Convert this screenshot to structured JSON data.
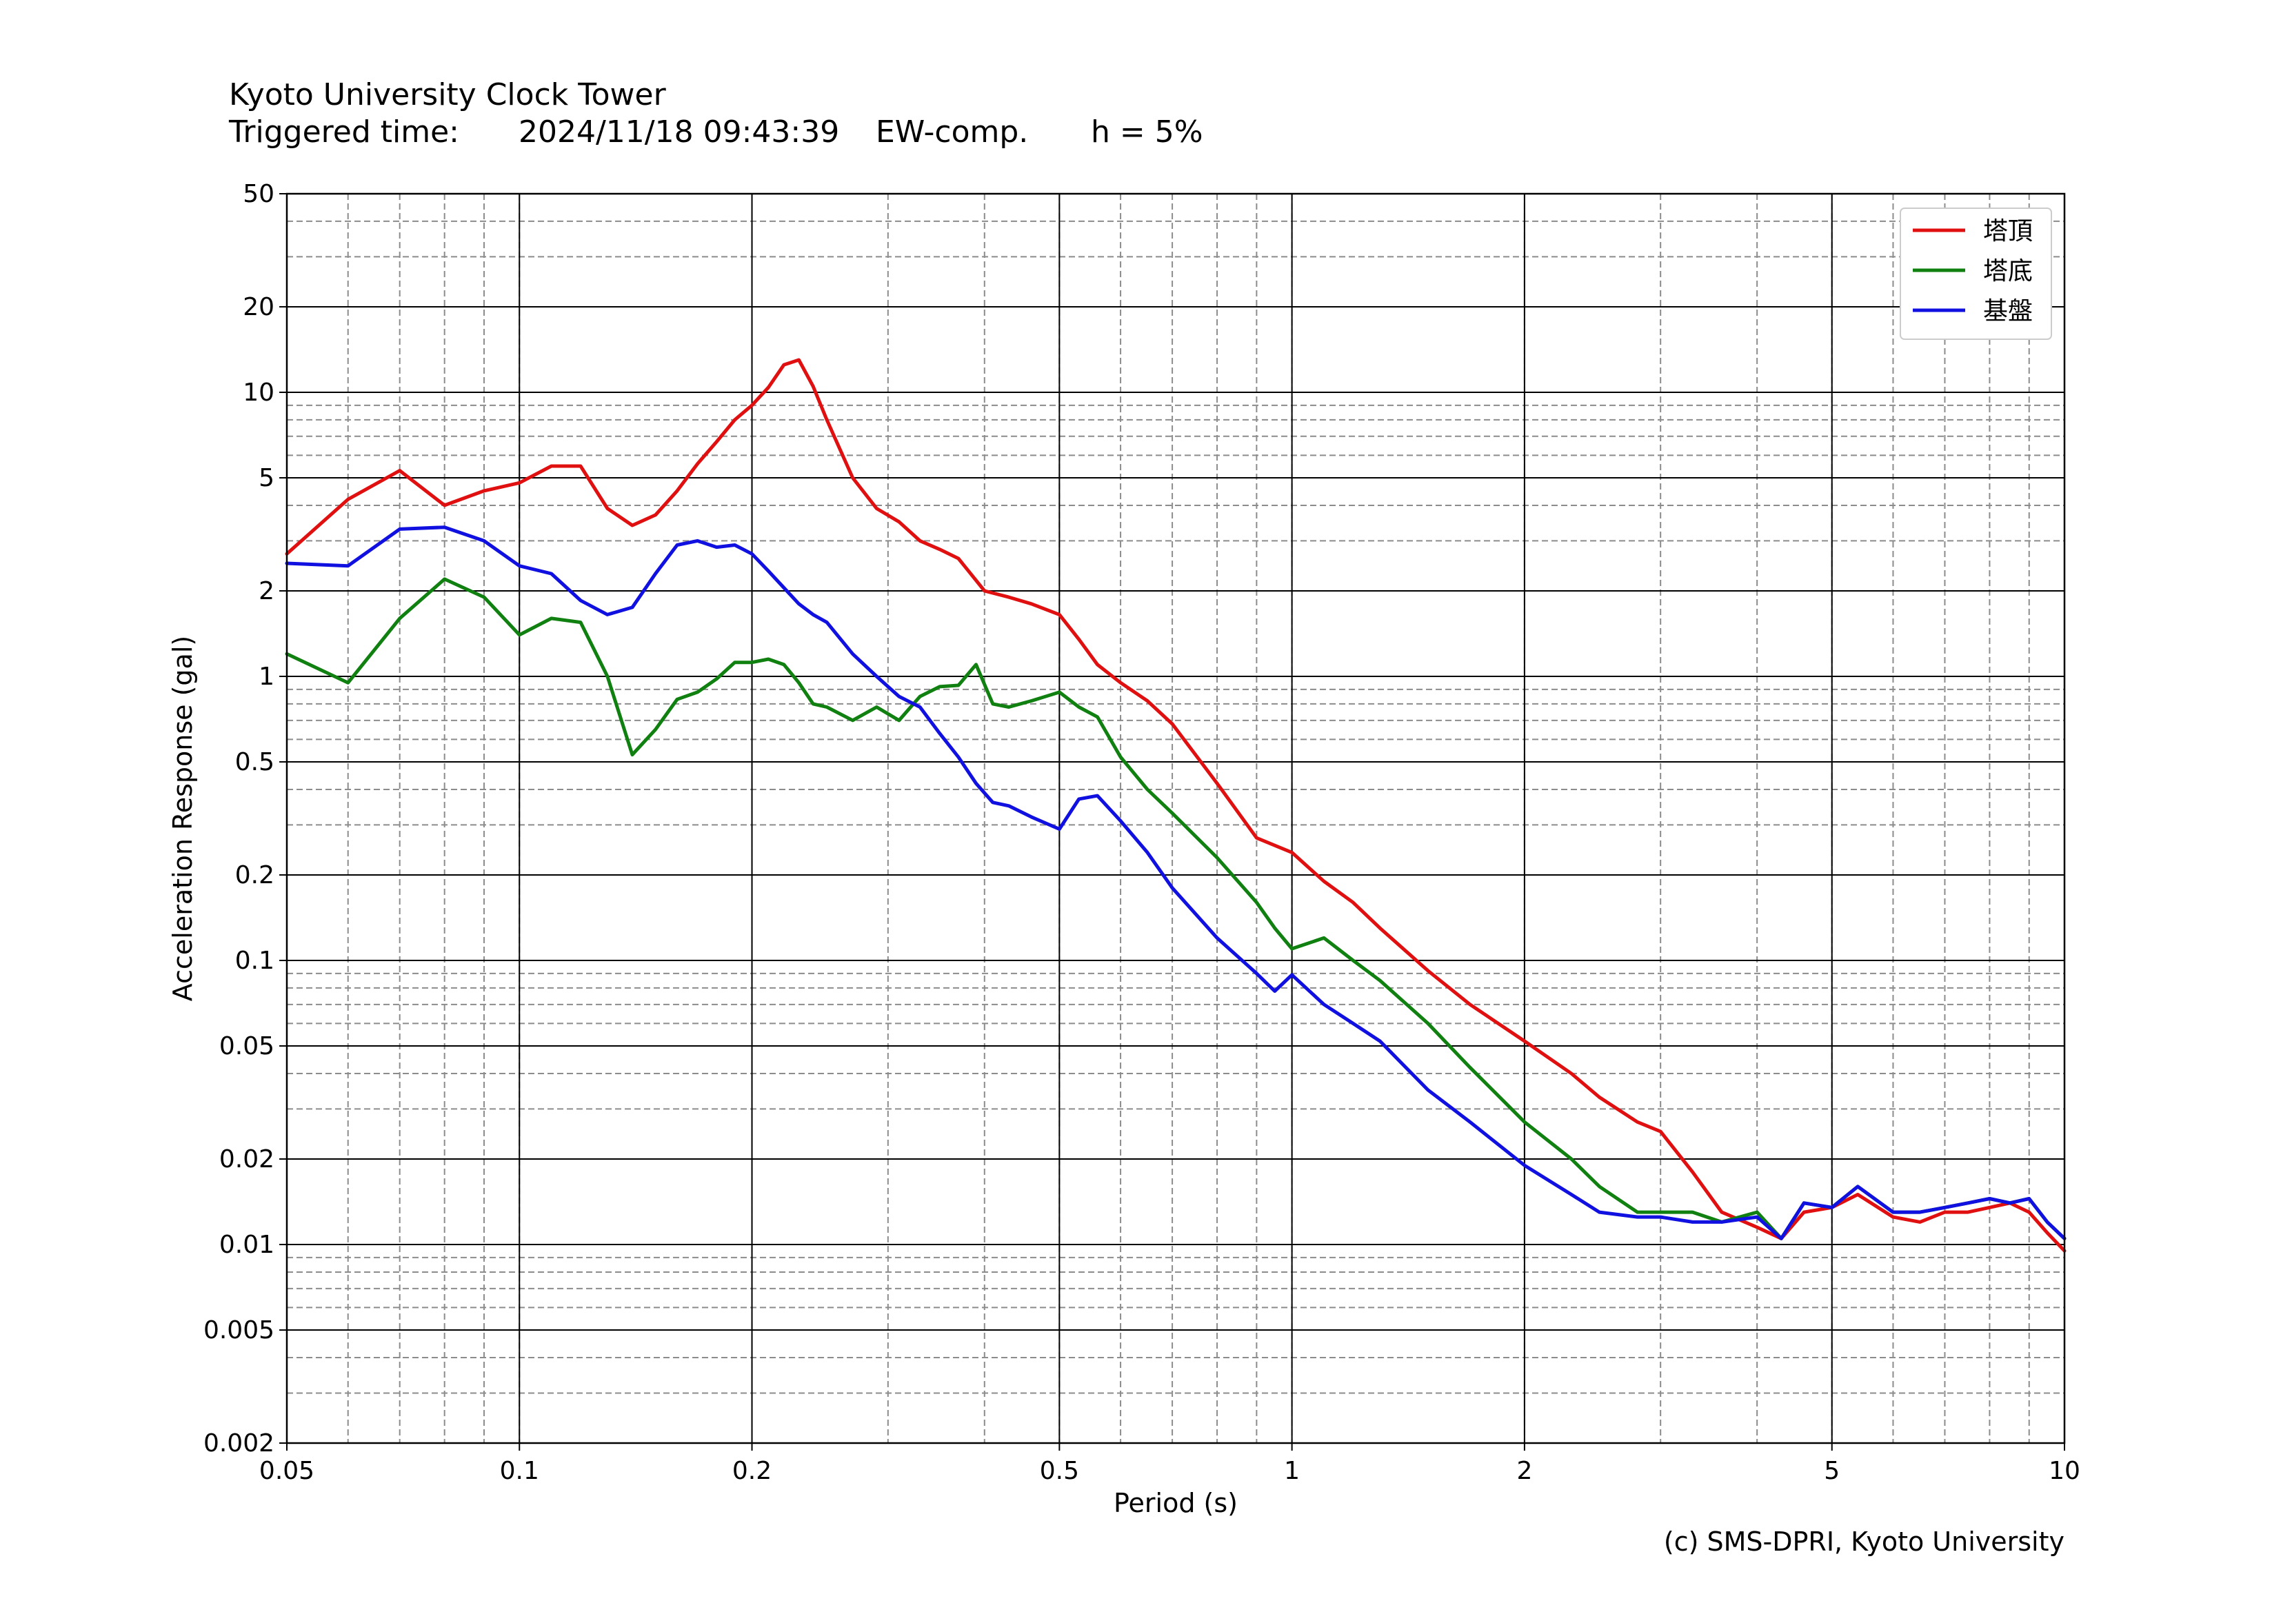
{
  "header": {
    "site": "Kyoto University Clock Tower",
    "trig_label": "Triggered time:",
    "trig_time": "2024/11/18 09:43:39",
    "component": "EW-comp.",
    "damping": "h = 5%"
  },
  "credit": "(c) SMS-DPRI, Kyoto University",
  "chart_data": {
    "type": "line",
    "xlabel": "Period (s)",
    "ylabel": "Acceleration Response (gal)",
    "xscale": "log",
    "yscale": "log",
    "xlim": [
      0.05,
      10
    ],
    "ylim": [
      0.002,
      50
    ],
    "grid": true,
    "legend_position": "top-right",
    "x_ticks": [
      0.05,
      0.1,
      0.2,
      0.5,
      1,
      2,
      5,
      10
    ],
    "x_tick_labels": [
      "0.05",
      "0.1",
      "0.2",
      "0.5",
      "1",
      "2",
      "5",
      "10"
    ],
    "y_ticks": [
      50,
      20,
      10,
      5,
      2,
      1,
      0.5,
      0.2,
      0.1,
      0.05,
      0.02,
      0.01,
      0.005,
      0.002
    ],
    "y_tick_labels": [
      "50",
      "20",
      "10",
      "5",
      "2",
      "1",
      "0.5",
      "0.2",
      "0.1",
      "0.05",
      "0.02",
      "0.01",
      "0.005",
      "0.002"
    ],
    "series": [
      {
        "name": "塔頂",
        "color": "#e01010",
        "x": [
          0.05,
          0.06,
          0.07,
          0.08,
          0.09,
          0.1,
          0.11,
          0.12,
          0.13,
          0.14,
          0.15,
          0.16,
          0.17,
          0.18,
          0.19,
          0.2,
          0.21,
          0.22,
          0.23,
          0.24,
          0.25,
          0.27,
          0.29,
          0.31,
          0.33,
          0.35,
          0.37,
          0.4,
          0.43,
          0.46,
          0.5,
          0.53,
          0.56,
          0.6,
          0.65,
          0.7,
          0.8,
          0.9,
          1.0,
          1.1,
          1.2,
          1.3,
          1.5,
          1.7,
          2.0,
          2.3,
          2.5,
          2.8,
          3.0,
          3.3,
          3.6,
          4.0,
          4.3,
          4.6,
          5.0,
          5.4,
          6.0,
          6.5,
          7.0,
          7.5,
          8.0,
          8.5,
          9.0,
          9.5,
          10.0
        ],
        "y": [
          2.7,
          4.2,
          5.3,
          4.0,
          4.5,
          4.8,
          5.5,
          5.5,
          3.9,
          3.4,
          3.7,
          4.5,
          5.6,
          6.7,
          8.0,
          9.0,
          10.4,
          12.5,
          13.0,
          10.5,
          8.0,
          5.0,
          3.9,
          3.5,
          3.0,
          2.8,
          2.6,
          2.0,
          1.9,
          1.8,
          1.65,
          1.35,
          1.1,
          0.95,
          0.82,
          0.68,
          0.42,
          0.27,
          0.24,
          0.19,
          0.16,
          0.13,
          0.092,
          0.07,
          0.052,
          0.04,
          0.033,
          0.027,
          0.025,
          0.018,
          0.013,
          0.0115,
          0.0105,
          0.013,
          0.0135,
          0.015,
          0.0125,
          0.012,
          0.013,
          0.013,
          0.0135,
          0.014,
          0.013,
          0.011,
          0.0095
        ]
      },
      {
        "name": "塔底",
        "color": "#108010",
        "x": [
          0.05,
          0.06,
          0.07,
          0.08,
          0.09,
          0.1,
          0.11,
          0.12,
          0.13,
          0.14,
          0.15,
          0.16,
          0.17,
          0.18,
          0.19,
          0.2,
          0.21,
          0.22,
          0.23,
          0.24,
          0.25,
          0.27,
          0.29,
          0.31,
          0.33,
          0.35,
          0.37,
          0.39,
          0.41,
          0.43,
          0.46,
          0.5,
          0.53,
          0.56,
          0.6,
          0.65,
          0.7,
          0.8,
          0.9,
          0.95,
          1.0,
          1.1,
          1.2,
          1.3,
          1.5,
          1.7,
          2.0,
          2.3,
          2.5,
          2.8,
          3.0,
          3.3,
          3.6,
          4.0,
          4.3,
          4.6,
          5.0,
          5.4,
          6.0,
          6.5,
          7.0,
          7.5,
          8.0,
          8.5,
          9.0,
          9.5,
          10.0
        ],
        "y": [
          1.2,
          0.95,
          1.6,
          2.2,
          1.9,
          1.4,
          1.6,
          1.55,
          1.0,
          0.53,
          0.65,
          0.83,
          0.88,
          0.98,
          1.12,
          1.12,
          1.15,
          1.1,
          0.95,
          0.8,
          0.78,
          0.7,
          0.78,
          0.7,
          0.85,
          0.92,
          0.93,
          1.1,
          0.8,
          0.78,
          0.82,
          0.88,
          0.78,
          0.72,
          0.52,
          0.4,
          0.33,
          0.23,
          0.16,
          0.13,
          0.11,
          0.12,
          0.1,
          0.085,
          0.06,
          0.042,
          0.027,
          0.02,
          0.016,
          0.013,
          0.013,
          0.013,
          0.012,
          0.013,
          0.0105,
          0.014,
          0.0135,
          0.016,
          0.013,
          0.013,
          0.0135,
          0.014,
          0.0145,
          0.014,
          0.0145,
          0.012,
          0.0105
        ]
      },
      {
        "name": "基盤",
        "color": "#1010e0",
        "x": [
          0.05,
          0.06,
          0.07,
          0.08,
          0.09,
          0.1,
          0.11,
          0.12,
          0.13,
          0.14,
          0.15,
          0.16,
          0.17,
          0.18,
          0.19,
          0.2,
          0.21,
          0.22,
          0.23,
          0.24,
          0.25,
          0.27,
          0.29,
          0.31,
          0.33,
          0.35,
          0.37,
          0.39,
          0.41,
          0.43,
          0.46,
          0.5,
          0.53,
          0.56,
          0.6,
          0.65,
          0.7,
          0.8,
          0.9,
          0.95,
          1.0,
          1.1,
          1.2,
          1.3,
          1.5,
          1.7,
          2.0,
          2.3,
          2.5,
          2.8,
          3.0,
          3.3,
          3.6,
          4.0,
          4.3,
          4.6,
          5.0,
          5.4,
          6.0,
          6.5,
          7.0,
          7.5,
          8.0,
          8.5,
          9.0,
          9.5,
          10.0
        ],
        "y": [
          2.5,
          2.45,
          3.3,
          3.35,
          3.0,
          2.45,
          2.3,
          1.85,
          1.65,
          1.75,
          2.3,
          2.9,
          3.0,
          2.85,
          2.9,
          2.7,
          2.35,
          2.05,
          1.8,
          1.65,
          1.55,
          1.2,
          1.0,
          0.85,
          0.78,
          0.63,
          0.52,
          0.42,
          0.36,
          0.35,
          0.32,
          0.29,
          0.37,
          0.38,
          0.31,
          0.24,
          0.18,
          0.12,
          0.09,
          0.078,
          0.089,
          0.07,
          0.06,
          0.052,
          0.035,
          0.027,
          0.019,
          0.015,
          0.013,
          0.0125,
          0.0125,
          0.012,
          0.012,
          0.0125,
          0.0105,
          0.014,
          0.0135,
          0.016,
          0.013,
          0.013,
          0.0135,
          0.014,
          0.0145,
          0.014,
          0.0145,
          0.012,
          0.0105
        ]
      }
    ]
  }
}
